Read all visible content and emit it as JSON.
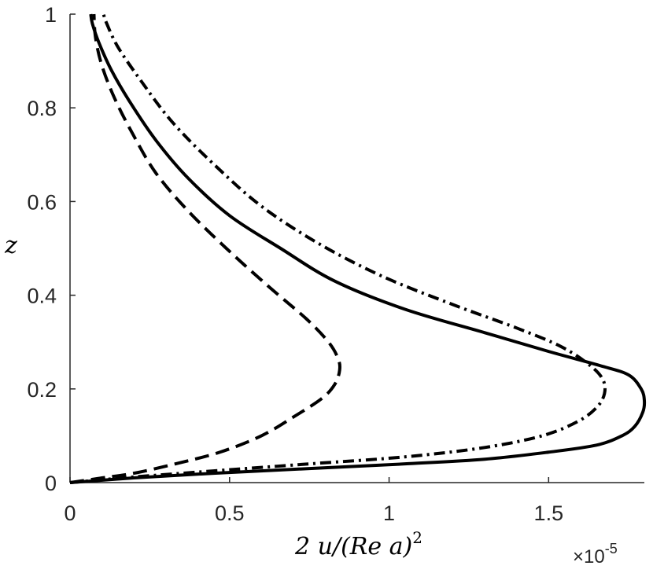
{
  "chart_data": {
    "type": "line",
    "xlabel": "2 u/(Re a)",
    "xlabel_exponent": "2",
    "ylabel": "z",
    "x_multiplier": {
      "symbol": "×",
      "base": "10",
      "exponent": "-5"
    },
    "xlim": [
      0,
      1.8
    ],
    "ylim": [
      0,
      1
    ],
    "xticks": [
      "0",
      "0.5",
      "1",
      "1.5"
    ],
    "yticks": [
      "0",
      "0.2",
      "0.4",
      "0.6",
      "0.8",
      "1"
    ],
    "grid": false,
    "box": false,
    "series": [
      {
        "style": "solid",
        "points": [
          [
            0,
            0
          ],
          [
            0.2,
            0.01
          ],
          [
            0.45,
            0.02
          ],
          [
            0.75,
            0.03
          ],
          [
            1.05,
            0.04
          ],
          [
            1.3,
            0.05
          ],
          [
            1.5,
            0.065
          ],
          [
            1.65,
            0.08
          ],
          [
            1.73,
            0.1
          ],
          [
            1.77,
            0.12
          ],
          [
            1.795,
            0.15
          ],
          [
            1.8,
            0.175
          ],
          [
            1.79,
            0.2
          ],
          [
            1.75,
            0.23
          ],
          [
            1.66,
            0.25
          ],
          [
            1.5,
            0.28
          ],
          [
            1.3,
            0.32
          ],
          [
            1.05,
            0.37
          ],
          [
            0.83,
            0.43
          ],
          [
            0.66,
            0.5
          ],
          [
            0.5,
            0.57
          ],
          [
            0.37,
            0.65
          ],
          [
            0.27,
            0.73
          ],
          [
            0.19,
            0.81
          ],
          [
            0.13,
            0.88
          ],
          [
            0.09,
            0.94
          ],
          [
            0.07,
            0.98
          ],
          [
            0.065,
            1.0
          ]
        ]
      },
      {
        "style": "dashed",
        "points": [
          [
            0,
            0
          ],
          [
            0.1,
            0.01
          ],
          [
            0.2,
            0.02
          ],
          [
            0.33,
            0.04
          ],
          [
            0.47,
            0.065
          ],
          [
            0.6,
            0.1
          ],
          [
            0.7,
            0.14
          ],
          [
            0.79,
            0.18
          ],
          [
            0.83,
            0.21
          ],
          [
            0.845,
            0.24
          ],
          [
            0.84,
            0.265
          ],
          [
            0.81,
            0.3
          ],
          [
            0.74,
            0.35
          ],
          [
            0.62,
            0.42
          ],
          [
            0.49,
            0.5
          ],
          [
            0.37,
            0.58
          ],
          [
            0.27,
            0.66
          ],
          [
            0.2,
            0.74
          ],
          [
            0.14,
            0.82
          ],
          [
            0.1,
            0.89
          ],
          [
            0.08,
            0.95
          ],
          [
            0.075,
            1.0
          ]
        ]
      },
      {
        "style": "dashdot",
        "points": [
          [
            0,
            0
          ],
          [
            0.2,
            0.012
          ],
          [
            0.45,
            0.025
          ],
          [
            0.75,
            0.04
          ],
          [
            1.05,
            0.055
          ],
          [
            1.3,
            0.075
          ],
          [
            1.48,
            0.1
          ],
          [
            1.59,
            0.13
          ],
          [
            1.65,
            0.16
          ],
          [
            1.675,
            0.19
          ],
          [
            1.67,
            0.22
          ],
          [
            1.63,
            0.25
          ],
          [
            1.54,
            0.29
          ],
          [
            1.4,
            0.33
          ],
          [
            1.2,
            0.38
          ],
          [
            0.98,
            0.44
          ],
          [
            0.78,
            0.51
          ],
          [
            0.6,
            0.59
          ],
          [
            0.45,
            0.68
          ],
          [
            0.32,
            0.77
          ],
          [
            0.22,
            0.86
          ],
          [
            0.15,
            0.93
          ],
          [
            0.115,
            0.98
          ],
          [
            0.105,
            1.0
          ]
        ]
      }
    ]
  }
}
